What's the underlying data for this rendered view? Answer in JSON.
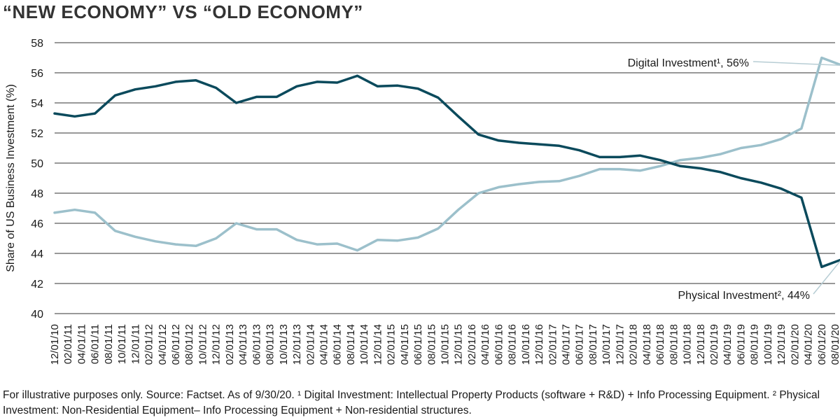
{
  "header": {
    "title": "“NEW ECONOMY” VS “OLD ECONOMY”"
  },
  "footnote": "For illustrative purposes only. Source: Factset. As of 9/30/20. ¹ Digital Investment: Intellectual Property Products (software + R&D) + Info Processing Equipment. ² Physical Investment: Non-Residential Equipment– Info Processing Equipment + Non-residential structures.",
  "colors": {
    "digital": "#9cc0cb",
    "physical": "#0b4a5c",
    "grid": "#333333",
    "leader": "#b7cdd4"
  },
  "chart_data": {
    "type": "line",
    "title": "“NEW ECONOMY” VS “OLD ECONOMY”",
    "ylabel": "Share of US Business Investment (%)",
    "xlabel": "",
    "ylim": [
      40,
      58
    ],
    "yticks": [
      40,
      42,
      44,
      46,
      48,
      50,
      52,
      54,
      56,
      58
    ],
    "grid": "horizontal",
    "x": [
      "12/01/10",
      "02/01/11",
      "04/01/11",
      "06/01/11",
      "08/01/11",
      "10/01/11",
      "12/01/11",
      "02/01/12",
      "04/01/12",
      "06/01/12",
      "08/01/12",
      "10/01/12",
      "12/01/12",
      "02/01/13",
      "04/01/13",
      "06/01/13",
      "08/01/13",
      "10/01/13",
      "12/01/13",
      "02/01/14",
      "04/01/14",
      "06/01/14",
      "08/01/14",
      "10/01/14",
      "12/01/14",
      "02/01/15",
      "04/01/15",
      "06/01/15",
      "08/01/15",
      "10/01/15",
      "12/01/15",
      "02/01/16",
      "04/01/16",
      "06/01/16",
      "08/01/16",
      "10/01/16",
      "12/01/16",
      "02/01/17",
      "04/01/17",
      "06/01/17",
      "08/01/17",
      "10/01/17",
      "12/01/17",
      "02/01/18",
      "04/01/18",
      "06/01/18",
      "08/01/18",
      "10/01/18",
      "12/01/18",
      "02/01/19",
      "04/01/19",
      "06/01/19",
      "08/01/19",
      "10/01/19",
      "12/01/19",
      "02/01/20",
      "04/01/20",
      "06/01/20",
      "08/01/20"
    ],
    "series": [
      {
        "name": "Digital Investment",
        "label": "Digital Investment¹, 56%",
        "color": "#9cc0cb",
        "points": [
          {
            "x": "12/01/10",
            "y": 46.7
          },
          {
            "x": "03/01/11",
            "y": 46.9
          },
          {
            "x": "06/01/11",
            "y": 46.7
          },
          {
            "x": "09/01/11",
            "y": 45.5
          },
          {
            "x": "12/01/11",
            "y": 45.1
          },
          {
            "x": "03/01/12",
            "y": 44.8
          },
          {
            "x": "06/01/12",
            "y": 44.6
          },
          {
            "x": "09/01/12",
            "y": 44.5
          },
          {
            "x": "12/01/12",
            "y": 45.0
          },
          {
            "x": "03/01/13",
            "y": 46.0
          },
          {
            "x": "06/01/13",
            "y": 45.6
          },
          {
            "x": "09/01/13",
            "y": 45.6
          },
          {
            "x": "12/01/13",
            "y": 44.9
          },
          {
            "x": "03/01/14",
            "y": 44.6
          },
          {
            "x": "06/01/14",
            "y": 44.65
          },
          {
            "x": "09/01/14",
            "y": 44.2
          },
          {
            "x": "12/01/14",
            "y": 44.9
          },
          {
            "x": "03/01/15",
            "y": 44.85
          },
          {
            "x": "06/01/15",
            "y": 45.05
          },
          {
            "x": "09/01/15",
            "y": 45.65
          },
          {
            "x": "12/01/15",
            "y": 46.9
          },
          {
            "x": "03/01/16",
            "y": 48.0
          },
          {
            "x": "06/01/16",
            "y": 48.4
          },
          {
            "x": "09/01/16",
            "y": 48.6
          },
          {
            "x": "12/01/16",
            "y": 48.75
          },
          {
            "x": "03/01/17",
            "y": 48.8
          },
          {
            "x": "06/01/17",
            "y": 49.15
          },
          {
            "x": "09/01/17",
            "y": 49.6
          },
          {
            "x": "12/01/17",
            "y": 49.6
          },
          {
            "x": "03/01/18",
            "y": 49.5
          },
          {
            "x": "06/01/18",
            "y": 49.8
          },
          {
            "x": "09/01/18",
            "y": 50.2
          },
          {
            "x": "12/01/18",
            "y": 50.35
          },
          {
            "x": "03/01/19",
            "y": 50.6
          },
          {
            "x": "06/01/19",
            "y": 51.0
          },
          {
            "x": "09/01/19",
            "y": 51.2
          },
          {
            "x": "12/01/19",
            "y": 51.6
          },
          {
            "x": "03/01/20",
            "y": 52.3
          },
          {
            "x": "06/01/20",
            "y": 57.0
          },
          {
            "x": "09/01/20",
            "y": 56.5
          }
        ]
      },
      {
        "name": "Physical Investment",
        "label": "Physical Investment², 44%",
        "color": "#0b4a5c",
        "points": [
          {
            "x": "12/01/10",
            "y": 53.3
          },
          {
            "x": "03/01/11",
            "y": 53.1
          },
          {
            "x": "06/01/11",
            "y": 53.3
          },
          {
            "x": "09/01/11",
            "y": 54.5
          },
          {
            "x": "12/01/11",
            "y": 54.9
          },
          {
            "x": "03/01/12",
            "y": 55.1
          },
          {
            "x": "06/01/12",
            "y": 55.4
          },
          {
            "x": "09/01/12",
            "y": 55.5
          },
          {
            "x": "12/01/12",
            "y": 55.0
          },
          {
            "x": "03/01/13",
            "y": 54.0
          },
          {
            "x": "06/01/13",
            "y": 54.4
          },
          {
            "x": "09/01/13",
            "y": 54.4
          },
          {
            "x": "12/01/13",
            "y": 55.1
          },
          {
            "x": "03/01/14",
            "y": 55.4
          },
          {
            "x": "06/01/14",
            "y": 55.35
          },
          {
            "x": "09/01/14",
            "y": 55.8
          },
          {
            "x": "12/01/14",
            "y": 55.1
          },
          {
            "x": "03/01/15",
            "y": 55.15
          },
          {
            "x": "06/01/15",
            "y": 54.95
          },
          {
            "x": "09/01/15",
            "y": 54.35
          },
          {
            "x": "12/01/15",
            "y": 53.1
          },
          {
            "x": "03/01/16",
            "y": 51.9
          },
          {
            "x": "06/01/16",
            "y": 51.5
          },
          {
            "x": "09/01/16",
            "y": 51.35
          },
          {
            "x": "12/01/16",
            "y": 51.25
          },
          {
            "x": "03/01/17",
            "y": 51.15
          },
          {
            "x": "06/01/17",
            "y": 50.85
          },
          {
            "x": "09/01/17",
            "y": 50.4
          },
          {
            "x": "12/01/17",
            "y": 50.4
          },
          {
            "x": "03/01/18",
            "y": 50.5
          },
          {
            "x": "06/01/18",
            "y": 50.2
          },
          {
            "x": "09/01/18",
            "y": 49.8
          },
          {
            "x": "12/01/18",
            "y": 49.65
          },
          {
            "x": "03/01/19",
            "y": 49.4
          },
          {
            "x": "06/01/19",
            "y": 49.0
          },
          {
            "x": "09/01/19",
            "y": 48.7
          },
          {
            "x": "12/01/19",
            "y": 48.3
          },
          {
            "x": "03/01/20",
            "y": 47.7
          },
          {
            "x": "06/01/20",
            "y": 43.1
          },
          {
            "x": "09/01/20",
            "y": 43.6
          }
        ]
      }
    ],
    "annotations": [
      {
        "text": "Digital Investment¹, 56%",
        "series": "Digital Investment"
      },
      {
        "text": "Physical Investment², 44%",
        "series": "Physical Investment"
      }
    ]
  }
}
